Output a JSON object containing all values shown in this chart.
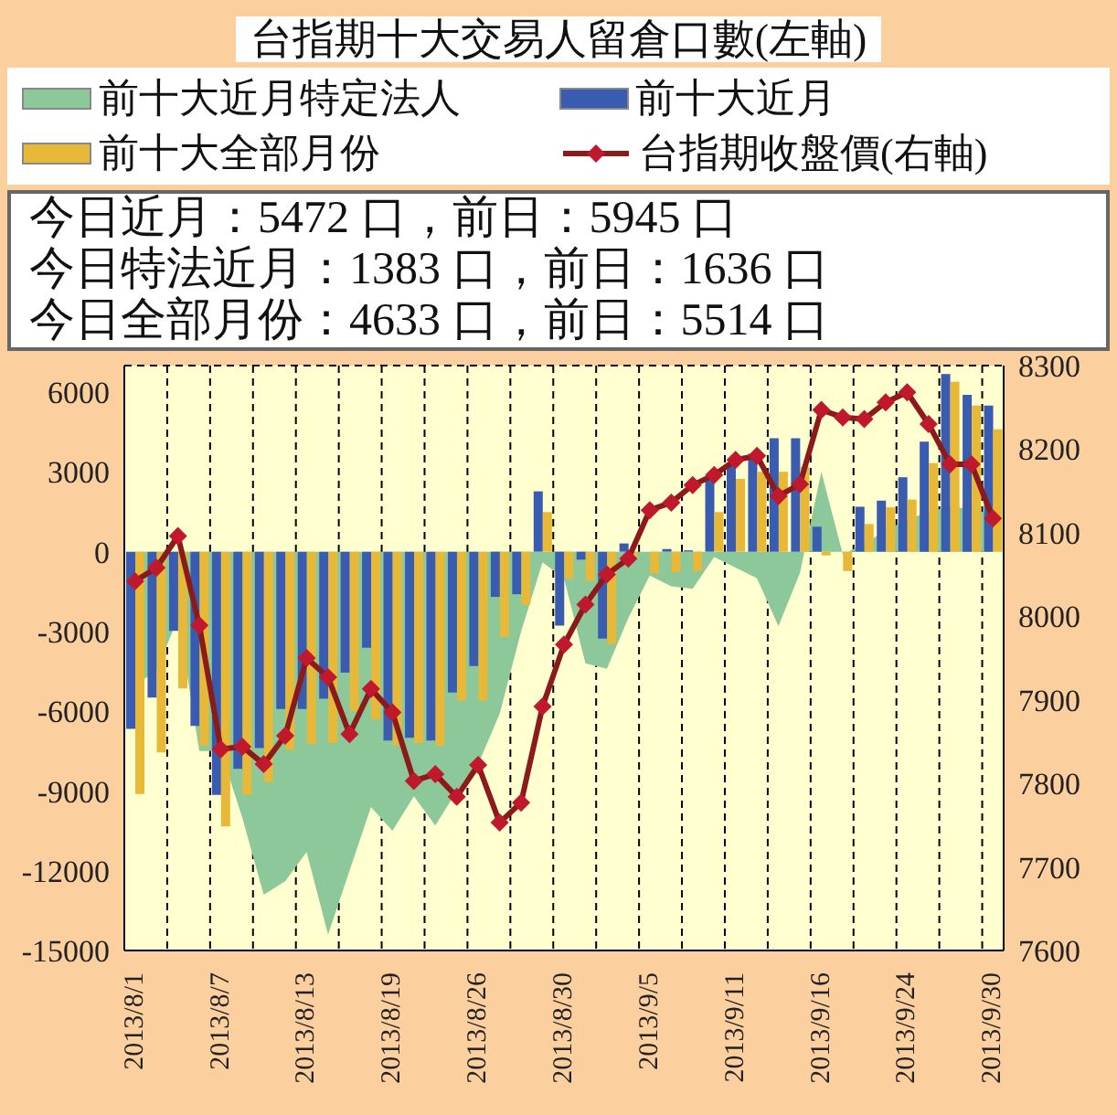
{
  "chart_data": {
    "type": "bar",
    "title": "台指期十大交易人留倉口數(左軸)",
    "categories": [
      "2013/8/1",
      null,
      null,
      null,
      "2013/8/7",
      null,
      null,
      null,
      "2013/8/13",
      null,
      null,
      null,
      "2013/8/19",
      null,
      null,
      null,
      "2013/8/26",
      null,
      null,
      null,
      "2013/8/30",
      null,
      null,
      null,
      "2013/9/5",
      null,
      null,
      null,
      "2013/9/11",
      null,
      null,
      null,
      "2013/9/16",
      null,
      null,
      null,
      "2013/9/24",
      null,
      null,
      null,
      "2013/9/30"
    ],
    "series": [
      {
        "name": "前十大近月特定法人",
        "type": "area",
        "color": "#8cc89a",
        "values": [
          -5000,
          -4500,
          -2500,
          -7500,
          -7500,
          -10000,
          -12900,
          -12400,
          -11300,
          -14400,
          -12000,
          -9600,
          -10500,
          -9200,
          -10300,
          -9000,
          -8000,
          -6100,
          -3000,
          -400,
          -1000,
          -4200,
          -4400,
          -2500,
          -900,
          -1300,
          -1400,
          -200,
          -600,
          -1000,
          -2800,
          -800,
          3000,
          -100,
          300,
          800,
          1200,
          1500,
          1700,
          1600,
          1400
        ]
      },
      {
        "name": "前十大近月",
        "color": "#3a5cb0",
        "values": [
          -6660,
          -5490,
          -2980,
          -6550,
          -9150,
          -8170,
          -7390,
          -5920,
          -5920,
          -5530,
          -4550,
          -3610,
          -7100,
          -7000,
          -7100,
          -5300,
          -4300,
          -1700,
          -1600,
          2270,
          -2780,
          -300,
          -3270,
          310,
          0,
          100,
          50,
          2700,
          3330,
          3680,
          4270,
          4270,
          940,
          0,
          1690,
          1920,
          2800,
          4140,
          6680,
          5900,
          5500
        ]
      },
      {
        "name": "前十大全部月份",
        "color": "#e8b838",
        "values": [
          -9110,
          -7550,
          -5140,
          -7290,
          -10330,
          -9150,
          -8660,
          -7450,
          -7230,
          -7190,
          -5990,
          -6310,
          -7290,
          -7200,
          -7290,
          -5600,
          -5600,
          -3200,
          -2000,
          1490,
          -1020,
          -1100,
          -3470,
          -200,
          -820,
          -780,
          -730,
          1490,
          2740,
          3000,
          3000,
          3190,
          -140,
          -730,
          1040,
          1670,
          1960,
          3330,
          6390,
          5500,
          4600
        ]
      },
      {
        "name": "台指期收盤價(右軸)",
        "type": "line",
        "axis": "y2",
        "color": "#8b1a1a",
        "marker": "diamond",
        "values": [
          8042,
          8058,
          8096,
          7989,
          7841,
          7844,
          7823,
          7857,
          7950,
          7927,
          7859,
          7913,
          7885,
          7803,
          7811,
          7784,
          7822,
          7753,
          7777,
          7892,
          7966,
          8014,
          8050,
          8069,
          8127,
          8136,
          8157,
          8169,
          8187,
          8192,
          8144,
          8158,
          8247,
          8238,
          8236,
          8256,
          8268,
          8230,
          8182,
          8182,
          8117
        ]
      }
    ],
    "ylim": [
      -15000,
      7000
    ],
    "yticks": [
      -15000,
      -12000,
      -9000,
      -6000,
      -3000,
      0,
      3000,
      6000
    ],
    "y2lim": [
      7600,
      8300
    ],
    "y2ticks": [
      7600,
      7700,
      7800,
      7900,
      8000,
      8100,
      8200,
      8300
    ],
    "grid": true,
    "legend": "top",
    "annotations": [
      "今日近月：5472 口，前日：5945 口",
      "今日特法近月：1383 口，前日：1636 口",
      "今日全部月份：4633 口，前日：5514 口"
    ]
  }
}
